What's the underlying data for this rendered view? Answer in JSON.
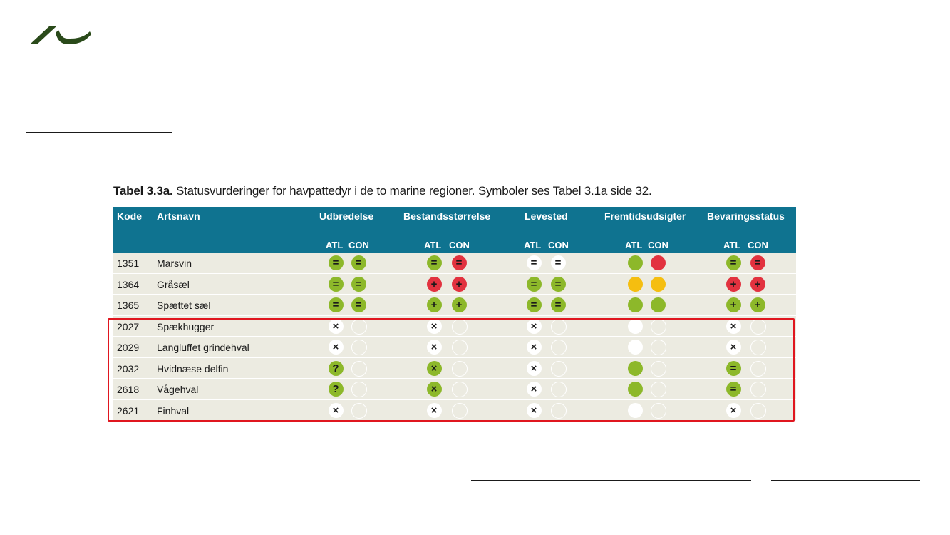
{
  "caption": {
    "label": "Tabel 3.3a.",
    "text": "Statusvurderinger for havpattedyr i de to marine regioner. Symboler ses Tabel 3.1a side 32."
  },
  "colors": {
    "header": "#0f7390",
    "row": "#ecebe1",
    "green": "#8db82a",
    "red": "#e2323f",
    "yellow": "#f5be10",
    "highlight": "#e0161f"
  },
  "table": {
    "headers": {
      "kode": "Kode",
      "artsnavn": "Artsnavn",
      "udbredelse": "Udbredelse",
      "bestand": "Bestandsstørrelse",
      "levested": "Levested",
      "fremtid": "Fremtidsudsigter",
      "bevaring": "Bevaringsstatus"
    },
    "sub": {
      "atl": "ATL",
      "con": "CON"
    },
    "rows": [
      {
        "kode": "1351",
        "navn": "Marsvin",
        "s": [
          [
            "green",
            "="
          ],
          [
            "green",
            "="
          ],
          [
            "green",
            "="
          ],
          [
            "red",
            "="
          ],
          [
            "white",
            "="
          ],
          [
            "white",
            "="
          ],
          [
            "green",
            ""
          ],
          [
            "red",
            ""
          ],
          [
            "green",
            "="
          ],
          [
            "red",
            "="
          ]
        ]
      },
      {
        "kode": "1364",
        "navn": "Gråsæl",
        "s": [
          [
            "green",
            "="
          ],
          [
            "green",
            "="
          ],
          [
            "red",
            "+"
          ],
          [
            "red",
            "+"
          ],
          [
            "green",
            "="
          ],
          [
            "green",
            "="
          ],
          [
            "yellow",
            ""
          ],
          [
            "yellow",
            ""
          ],
          [
            "red",
            "+"
          ],
          [
            "red",
            "+"
          ]
        ]
      },
      {
        "kode": "1365",
        "navn": "Spættet sæl",
        "s": [
          [
            "green",
            "="
          ],
          [
            "green",
            "="
          ],
          [
            "green",
            "+"
          ],
          [
            "green",
            "+"
          ],
          [
            "green",
            "="
          ],
          [
            "green",
            "="
          ],
          [
            "green",
            ""
          ],
          [
            "green",
            ""
          ],
          [
            "green",
            "+"
          ],
          [
            "green",
            "+"
          ]
        ]
      },
      {
        "kode": "2027",
        "navn": "Spækhugger",
        "s": [
          [
            "white",
            "×"
          ],
          [
            "empty",
            ""
          ],
          [
            "white",
            "×"
          ],
          [
            "empty",
            ""
          ],
          [
            "white",
            "×"
          ],
          [
            "empty",
            ""
          ],
          [
            "white",
            ""
          ],
          [
            "empty",
            ""
          ],
          [
            "white",
            "×"
          ],
          [
            "empty",
            ""
          ]
        ]
      },
      {
        "kode": "2029",
        "navn": "Langluffet grindehval",
        "s": [
          [
            "white",
            "×"
          ],
          [
            "empty",
            ""
          ],
          [
            "white",
            "×"
          ],
          [
            "empty",
            ""
          ],
          [
            "white",
            "×"
          ],
          [
            "empty",
            ""
          ],
          [
            "white",
            ""
          ],
          [
            "empty",
            ""
          ],
          [
            "white",
            "×"
          ],
          [
            "empty",
            ""
          ]
        ]
      },
      {
        "kode": "2032",
        "navn": "Hvidnæse delfin",
        "s": [
          [
            "green",
            "?"
          ],
          [
            "empty",
            ""
          ],
          [
            "green",
            "×"
          ],
          [
            "empty",
            ""
          ],
          [
            "white",
            "×"
          ],
          [
            "empty",
            ""
          ],
          [
            "green",
            ""
          ],
          [
            "empty",
            ""
          ],
          [
            "green",
            "="
          ],
          [
            "empty",
            ""
          ]
        ]
      },
      {
        "kode": "2618",
        "navn": "Vågehval",
        "s": [
          [
            "green",
            "?"
          ],
          [
            "empty",
            ""
          ],
          [
            "green",
            "×"
          ],
          [
            "empty",
            ""
          ],
          [
            "white",
            "×"
          ],
          [
            "empty",
            ""
          ],
          [
            "green",
            ""
          ],
          [
            "empty",
            ""
          ],
          [
            "green",
            "="
          ],
          [
            "empty",
            ""
          ]
        ]
      },
      {
        "kode": "2621",
        "navn": "Finhval",
        "s": [
          [
            "white",
            "×"
          ],
          [
            "empty",
            ""
          ],
          [
            "white",
            "×"
          ],
          [
            "empty",
            ""
          ],
          [
            "white",
            "×"
          ],
          [
            "empty",
            ""
          ],
          [
            "white",
            ""
          ],
          [
            "empty",
            ""
          ],
          [
            "white",
            "×"
          ],
          [
            "empty",
            ""
          ]
        ]
      }
    ]
  }
}
